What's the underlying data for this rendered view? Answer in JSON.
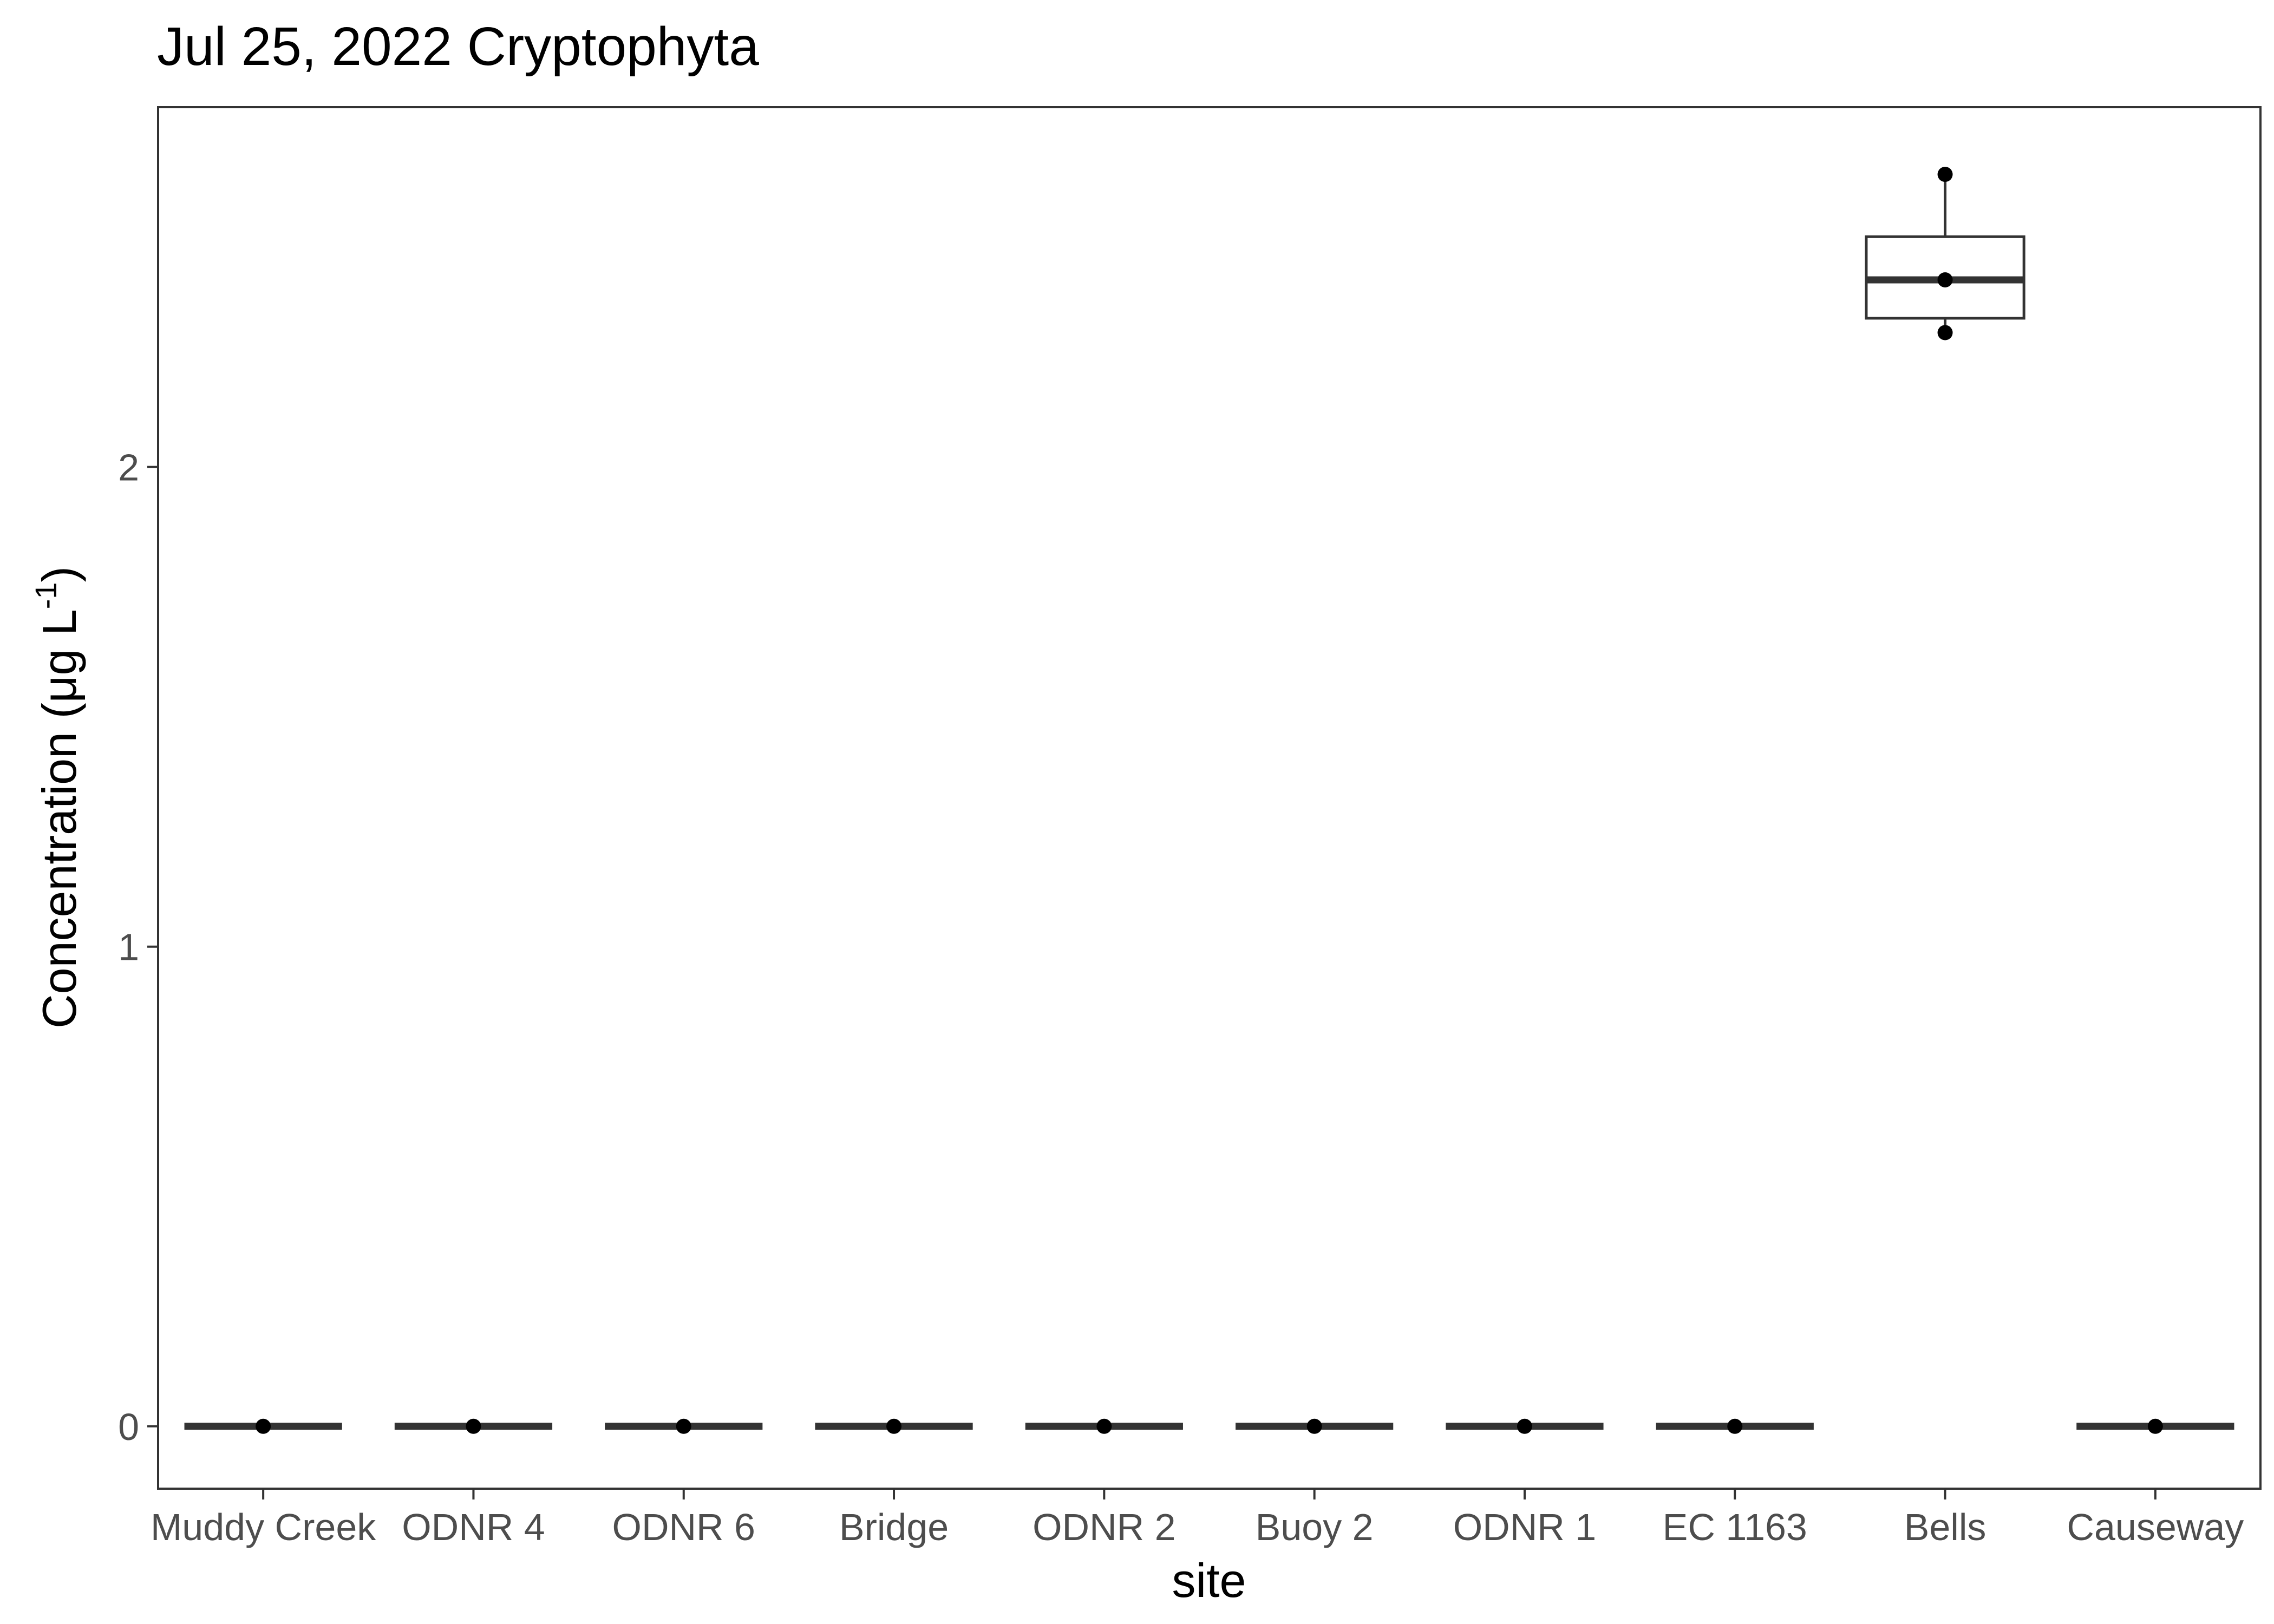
{
  "chart_data": {
    "type": "box",
    "title": "Jul 25, 2022 Cryptophyta",
    "xlabel": "site",
    "ylabel_main": "Concentration (μg L",
    "ylabel_sup": "-1",
    "ylabel_close": ")",
    "ylim": [
      -0.13,
      2.75
    ],
    "yticks": [
      0,
      1,
      2
    ],
    "grid": false,
    "categories": [
      "Muddy Creek",
      "ODNR 4",
      "ODNR 6",
      "Bridge",
      "ODNR 2",
      "Buoy 2",
      "ODNR 1",
      "EC 1163",
      "Bells",
      "Causeway"
    ],
    "boxes": [
      {
        "site": "Muddy Creek",
        "min": 0,
        "q1": 0,
        "median": 0,
        "q3": 0,
        "max": 0
      },
      {
        "site": "ODNR 4",
        "min": 0,
        "q1": 0,
        "median": 0,
        "q3": 0,
        "max": 0
      },
      {
        "site": "ODNR 6",
        "min": 0,
        "q1": 0,
        "median": 0,
        "q3": 0,
        "max": 0
      },
      {
        "site": "Bridge",
        "min": 0,
        "q1": 0,
        "median": 0,
        "q3": 0,
        "max": 0
      },
      {
        "site": "ODNR 2",
        "min": 0,
        "q1": 0,
        "median": 0,
        "q3": 0,
        "max": 0
      },
      {
        "site": "Buoy 2",
        "min": 0,
        "q1": 0,
        "median": 0,
        "q3": 0,
        "max": 0
      },
      {
        "site": "ODNR 1",
        "min": 0,
        "q1": 0,
        "median": 0,
        "q3": 0,
        "max": 0
      },
      {
        "site": "EC 1163",
        "min": 0,
        "q1": 0,
        "median": 0,
        "q3": 0,
        "max": 0
      },
      {
        "site": "Bells",
        "min": 2.28,
        "q1": 2.31,
        "median": 2.39,
        "q3": 2.48,
        "max": 2.61
      },
      {
        "site": "Causeway",
        "min": 0,
        "q1": 0,
        "median": 0,
        "q3": 0,
        "max": 0
      }
    ],
    "points": [
      {
        "site": "Muddy Creek",
        "y": 0
      },
      {
        "site": "ODNR 4",
        "y": 0
      },
      {
        "site": "ODNR 6",
        "y": 0
      },
      {
        "site": "Bridge",
        "y": 0
      },
      {
        "site": "ODNR 2",
        "y": 0
      },
      {
        "site": "Buoy 2",
        "y": 0
      },
      {
        "site": "ODNR 1",
        "y": 0
      },
      {
        "site": "EC 1163",
        "y": 0
      },
      {
        "site": "Bells",
        "y": 2.61
      },
      {
        "site": "Bells",
        "y": 2.39
      },
      {
        "site": "Bells",
        "y": 2.28
      },
      {
        "site": "Causeway",
        "y": 0
      }
    ],
    "colors": {
      "box_line": "#333333",
      "point": "#000000",
      "tick_label": "#4d4d4d",
      "panel_border": "#333333"
    }
  }
}
